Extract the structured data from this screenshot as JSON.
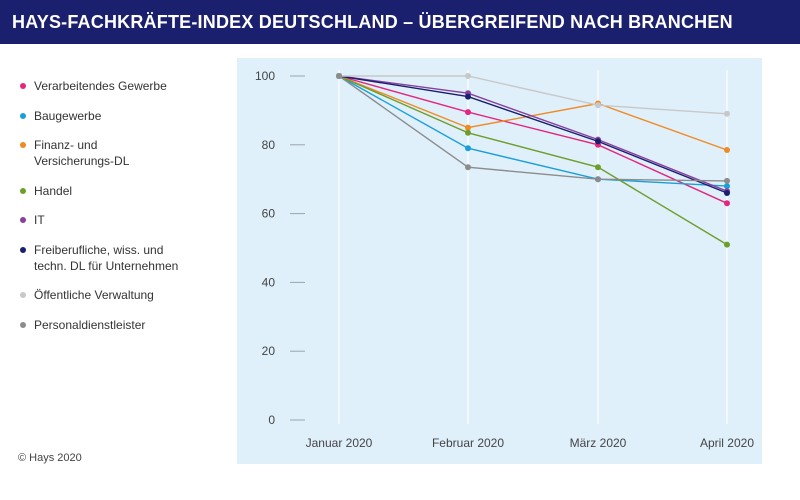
{
  "title": "HAYS-FACHKRÄFTE-INDEX DEUTSCHLAND – ÜBERGREIFEND NACH BRANCHEN",
  "copyright": "© Hays 2020",
  "chart_data": {
    "type": "line",
    "title": "HAYS-FACHKRÄFTE-INDEX DEUTSCHLAND – ÜBERGREIFEND NACH BRANCHEN",
    "xlabel": "",
    "ylabel": "",
    "categories": [
      "Januar 2020",
      "Februar 2020",
      "März 2020",
      "April 2020"
    ],
    "ylim": [
      0,
      100
    ],
    "yticks": [
      0,
      20,
      40,
      60,
      80,
      100
    ],
    "legend_position": "left",
    "series": [
      {
        "name": "Verarbeitendes Gewerbe",
        "lines": [
          "Verarbeitendes Gewerbe"
        ],
        "color": "#e5267f",
        "values": [
          100,
          89.5,
          80,
          63
        ]
      },
      {
        "name": "Baugewerbe",
        "lines": [
          "Baugewerbe"
        ],
        "color": "#1a9fd9",
        "values": [
          100,
          79,
          70,
          68
        ]
      },
      {
        "name": "Finanz- und Versicherungs-DL",
        "lines": [
          "Finanz- und",
          "Versicherungs-DL"
        ],
        "color": "#f08a24",
        "values": [
          100,
          85,
          92,
          78.5
        ]
      },
      {
        "name": "Handel",
        "lines": [
          "Handel"
        ],
        "color": "#6d9e2a",
        "values": [
          100,
          83.5,
          73.5,
          51
        ]
      },
      {
        "name": "IT",
        "lines": [
          "IT"
        ],
        "color": "#8a3fa0",
        "values": [
          100,
          95,
          81.5,
          66.5
        ]
      },
      {
        "name": "Freiberufliche, wiss. und techn. DL für Unternehmen",
        "lines": [
          "Freiberufliche, wiss. und",
          "techn. DL für Unternehmen"
        ],
        "color": "#1a1f6e",
        "values": [
          100,
          94,
          81,
          66
        ]
      },
      {
        "name": "Öffentliche Verwaltung",
        "lines": [
          "Öffentliche Verwaltung"
        ],
        "color": "#c8c8c8",
        "values": [
          100,
          100,
          91.5,
          89
        ]
      },
      {
        "name": "Personaldienstleister",
        "lines": [
          "Personaldienstleister"
        ],
        "color": "#8c8c8c",
        "values": [
          100,
          73.5,
          70,
          69.5
        ]
      }
    ]
  }
}
